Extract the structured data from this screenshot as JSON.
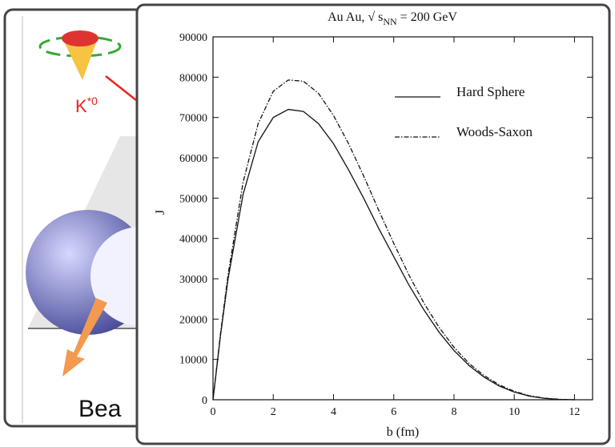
{
  "background_card": {
    "label_base": "K",
    "label_sup": "*0",
    "caption": "Bea"
  },
  "chart_data": {
    "type": "line",
    "title_start": "Au Au, √ s",
    "title_sub": "NN",
    "title_end": " =  200 GeV",
    "x_label": "b (fm)",
    "y_label": "J",
    "x": [
      0,
      0.25,
      0.5,
      1,
      1.5,
      2,
      2.5,
      3,
      3.5,
      4,
      4.5,
      5,
      5.5,
      6,
      6.5,
      7,
      7.5,
      8,
      8.5,
      9,
      9.5,
      10,
      10.5,
      11,
      11.5,
      12
    ],
    "series": [
      {
        "name": "Hard Sphere",
        "color": "#111111",
        "dash": "solid",
        "values": [
          0,
          16000,
          30000,
          51000,
          64000,
          70000,
          72000,
          71500,
          68500,
          63500,
          57000,
          50000,
          42500,
          35500,
          28500,
          22300,
          16800,
          12200,
          8500,
          5600,
          3400,
          1900,
          900,
          350,
          80,
          0
        ]
      },
      {
        "name": "Woods-Saxon",
        "color": "#111111",
        "dash": "dashdot",
        "values": [
          0,
          16500,
          31000,
          54000,
          68500,
          76500,
          79300,
          79000,
          76000,
          70500,
          63500,
          55500,
          47000,
          38800,
          31000,
          24000,
          18000,
          13000,
          9000,
          6000,
          3700,
          2100,
          1000,
          400,
          100,
          0
        ]
      }
    ],
    "xlim": [
      0,
      12.6
    ],
    "xticks": [
      0,
      2,
      4,
      6,
      8,
      10,
      12
    ],
    "ylim": [
      0,
      90000
    ],
    "yticks": [
      0,
      10000,
      20000,
      30000,
      40000,
      50000,
      60000,
      70000,
      80000,
      90000
    ],
    "grid": false,
    "legend": "upper right"
  }
}
